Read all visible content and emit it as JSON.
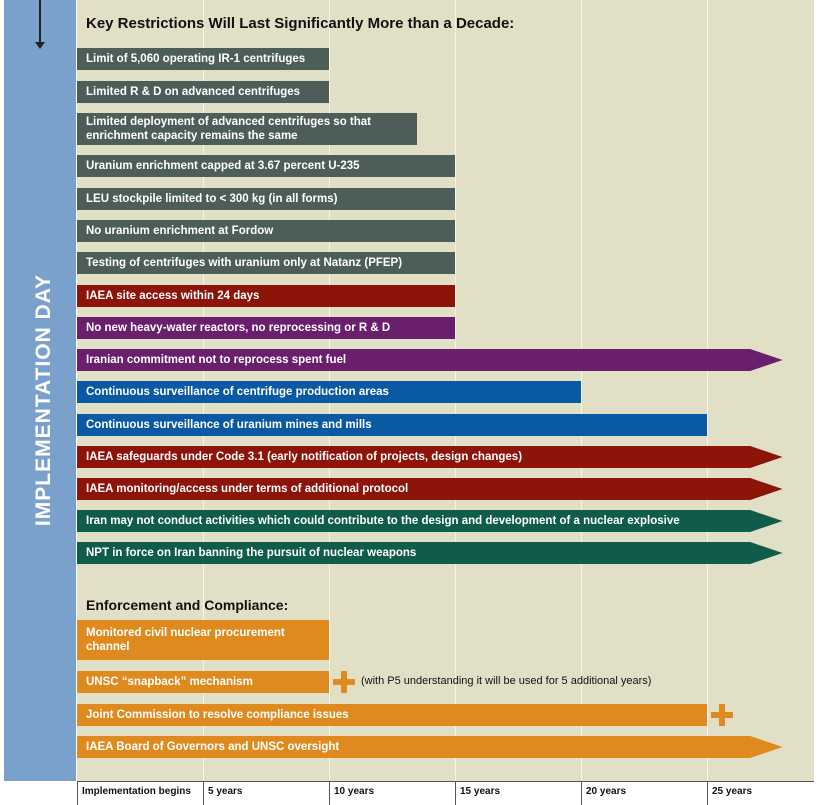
{
  "sidebar": {
    "label": "IMPLEMENTATION DAY"
  },
  "headings": {
    "restrictions": "Key Restrictions Will Last Significantly More than a Decade:",
    "enforcement": "Enforcement and Compliance:"
  },
  "colors": {
    "gray": "#4d5e58",
    "red": "#8c1408",
    "purple": "#6a1f6d",
    "blue": "#0a5aa3",
    "green": "#0f5c4a",
    "orange": "#df8a1f",
    "panel": "#e2dfc7",
    "sidebar": "#7aa1cc"
  },
  "restrictions": [
    {
      "label": "Limit of 5,060 operating IR-1 centrifuges",
      "color": "gray",
      "duration_years": 10,
      "continues": false
    },
    {
      "label": "Limited R & D on advanced centrifuges",
      "color": "gray",
      "duration_years": 10,
      "continues": false
    },
    {
      "label": "Limited deployment of advanced centrifuges so that enrichment capacity remains the same",
      "color": "gray",
      "duration_years": 13.5,
      "continues": false
    },
    {
      "label": "Uranium enrichment capped at 3.67 percent U-235",
      "color": "gray",
      "duration_years": 15,
      "continues": false
    },
    {
      "label": "LEU stockpile limited to < 300 kg (in all forms)",
      "color": "gray",
      "duration_years": 15,
      "continues": false
    },
    {
      "label": "No uranium enrichment at Fordow",
      "color": "gray",
      "duration_years": 15,
      "continues": false
    },
    {
      "label": "Testing of centrifuges with uranium only at Natanz (PFEP)",
      "color": "gray",
      "duration_years": 15,
      "continues": false
    },
    {
      "label": "IAEA site access within 24 days",
      "color": "red",
      "duration_years": 15,
      "continues": false
    },
    {
      "label": "No new heavy-water reactors, no reprocessing or R & D",
      "color": "purple",
      "duration_years": 15,
      "continues": false
    },
    {
      "label": "Iranian commitment not to reprocess spent fuel",
      "color": "purple",
      "duration_years": 28,
      "continues": true
    },
    {
      "label": "Continuous surveillance of centrifuge production areas",
      "color": "blue",
      "duration_years": 20,
      "continues": false
    },
    {
      "label": "Continuous surveillance of uranium mines and mills",
      "color": "blue",
      "duration_years": 25,
      "continues": false
    },
    {
      "label": "IAEA safeguards under Code 3.1 (early notification of projects, design changes)",
      "color": "red",
      "duration_years": 28,
      "continues": true
    },
    {
      "label": "IAEA monitoring/access under terms of additional protocol",
      "color": "red",
      "duration_years": 28,
      "continues": true
    },
    {
      "label": "Iran may not conduct activities which could contribute to the design and development of a nuclear explosive",
      "color": "green",
      "duration_years": 28,
      "continues": true
    },
    {
      "label": "NPT in force on Iran banning the pursuit of nuclear weapons",
      "color": "green",
      "duration_years": 28,
      "continues": true
    }
  ],
  "enforcement": [
    {
      "label": "Monitored civil nuclear procurement channel",
      "color": "orange",
      "duration_years": 10,
      "continues": false,
      "plus": false
    },
    {
      "label": "UNSC “snapback” mechanism",
      "color": "orange",
      "duration_years": 10,
      "continues": false,
      "plus": true,
      "note": "(with P5 understanding it will be used for 5 additional years)"
    },
    {
      "label": "Joint Commission to resolve compliance issues",
      "color": "orange",
      "duration_years": 25,
      "continues": false,
      "plus": true
    },
    {
      "label": "IAEA Board of Governors and UNSC oversight",
      "color": "orange",
      "duration_years": 28,
      "continues": true,
      "plus": false
    }
  ],
  "axis": [
    {
      "label": "Implementation begins",
      "years": 0
    },
    {
      "label": "5 years",
      "years": 5
    },
    {
      "label": "10 years",
      "years": 10
    },
    {
      "label": "15 years",
      "years": 15
    },
    {
      "label": "20 years",
      "years": 20
    },
    {
      "label": "25 years",
      "years": 25
    }
  ]
}
